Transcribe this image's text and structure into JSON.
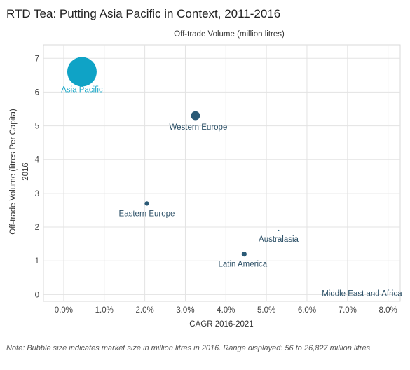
{
  "chart_data": {
    "type": "scatter",
    "title": "RTD Tea: Putting Asia Pacific in Context, 2011-2016",
    "subtitle": "Off-trade Volume (million litres)",
    "xlabel": "CAGR 2016-2021",
    "ylabel": "Off-trade Volume (litres Per Capita)",
    "ylabel2": "2016",
    "xlim": [
      -0.5,
      8.3
    ],
    "ylim": [
      -0.2,
      7.4
    ],
    "xticks": [
      "0.0%",
      "1.0%",
      "2.0%",
      "3.0%",
      "4.0%",
      "5.0%",
      "6.0%",
      "7.0%",
      "8.0%"
    ],
    "yticks": [
      "0",
      "1",
      "2",
      "3",
      "4",
      "5",
      "6",
      "7"
    ],
    "grid": true,
    "points": [
      {
        "label": "Asia Pacific",
        "x": 0.45,
        "y": 6.6,
        "size": 26827,
        "color": "#0fa3c6",
        "label_color": "#1aa8c8"
      },
      {
        "label": "Western Europe",
        "x": 3.25,
        "y": 5.3,
        "size": 2500,
        "color": "#2b5a76",
        "label_color": "#2b4f66"
      },
      {
        "label": "Eastern Europe",
        "x": 2.05,
        "y": 2.7,
        "size": 600,
        "color": "#2b5a76",
        "label_color": "#2b4f66"
      },
      {
        "label": "Australasia",
        "x": 5.3,
        "y": 1.9,
        "size": 56,
        "color": "#2b5a76",
        "label_color": "#2b4f66"
      },
      {
        "label": "Latin America",
        "x": 4.45,
        "y": 1.2,
        "size": 800,
        "color": "#2b5a76",
        "label_color": "#2b4f66"
      },
      {
        "label": "Middle East and Africa",
        "x": 7.65,
        "y": 0.0,
        "size": 56,
        "color": "#2b5a76",
        "label_color": "#2b4f66"
      }
    ]
  },
  "note": "Note: Bubble size indicates market size in million litres in 2016. Range displayed: 56 to 26,827 million litres"
}
